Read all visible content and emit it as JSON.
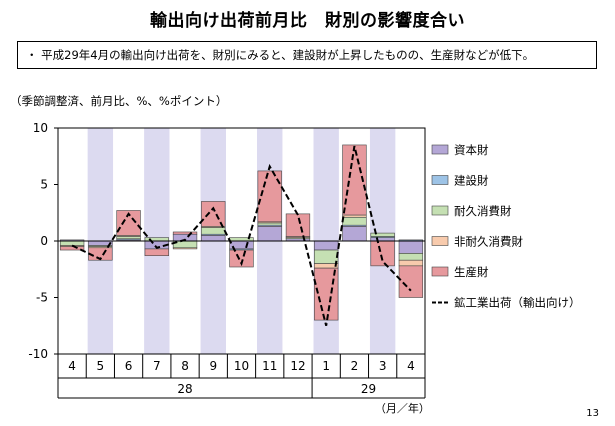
{
  "title": "輸出向け出荷前月比　財別の影響度合い",
  "summary": "・ 平成29年4月の輸出向け出荷を、財別にみると、建設財が上昇したものの、生産財などが低下。",
  "page_number": "13",
  "chart_data": {
    "type": "bar",
    "stacked": true,
    "unit_note": "（季節調整済、前月比、%、%ポイント）",
    "xlabel": "（月／年）",
    "categories": [
      "4",
      "5",
      "6",
      "7",
      "8",
      "9",
      "10",
      "11",
      "12",
      "1",
      "2",
      "3",
      "4"
    ],
    "year_labels": [
      {
        "label": "28",
        "from": 0,
        "to": 8
      },
      {
        "label": "29",
        "from": 9,
        "to": 12
      }
    ],
    "shaded_categories": [
      1,
      3,
      5,
      7,
      9,
      11
    ],
    "ylim": [
      -10,
      10
    ],
    "yticks": [
      -10,
      -5,
      0,
      5,
      10
    ],
    "series": [
      {
        "name": "資本財",
        "color": "#b4a7d6",
        "values": [
          0.1,
          -0.4,
          0.1,
          -0.7,
          0.6,
          0.5,
          -0.7,
          1.3,
          0.2,
          -0.8,
          1.3,
          0.3,
          -1.1
        ]
      },
      {
        "name": "建設財",
        "color": "#9dc3e6",
        "values": [
          0,
          0,
          0.1,
          0,
          0,
          0.1,
          -0.1,
          0.1,
          0,
          0,
          0.1,
          0.1,
          0.1
        ]
      },
      {
        "name": "耐久消費財",
        "color": "#c5e0b3",
        "values": [
          -0.4,
          -0.1,
          0.2,
          0.3,
          -0.6,
          0.6,
          0.3,
          0.2,
          0.1,
          -1.2,
          0.7,
          0.3,
          -0.6
        ]
      },
      {
        "name": "非耐久消費財",
        "color": "#f8cbad",
        "values": [
          -0.1,
          -0.1,
          0.1,
          0,
          -0.1,
          0.1,
          0,
          0.1,
          0.1,
          -0.4,
          0.2,
          0,
          -0.5
        ]
      },
      {
        "name": "生産財",
        "color": "#e6999d",
        "values": [
          -0.3,
          -1.1,
          2.2,
          -0.6,
          0.2,
          2.2,
          -1.5,
          4.5,
          2.0,
          -4.6,
          6.2,
          -2.2,
          -2.8
        ]
      }
    ],
    "line": {
      "name": "鉱工業出荷（輸出向け）",
      "color": "#000000",
      "dashed": true,
      "values": [
        -0.4,
        -1.6,
        2.4,
        -0.6,
        0.1,
        2.9,
        -2.0,
        6.6,
        2.3,
        -7.5,
        8.4,
        -1.8,
        -4.4
      ]
    },
    "legend_position": "right"
  }
}
